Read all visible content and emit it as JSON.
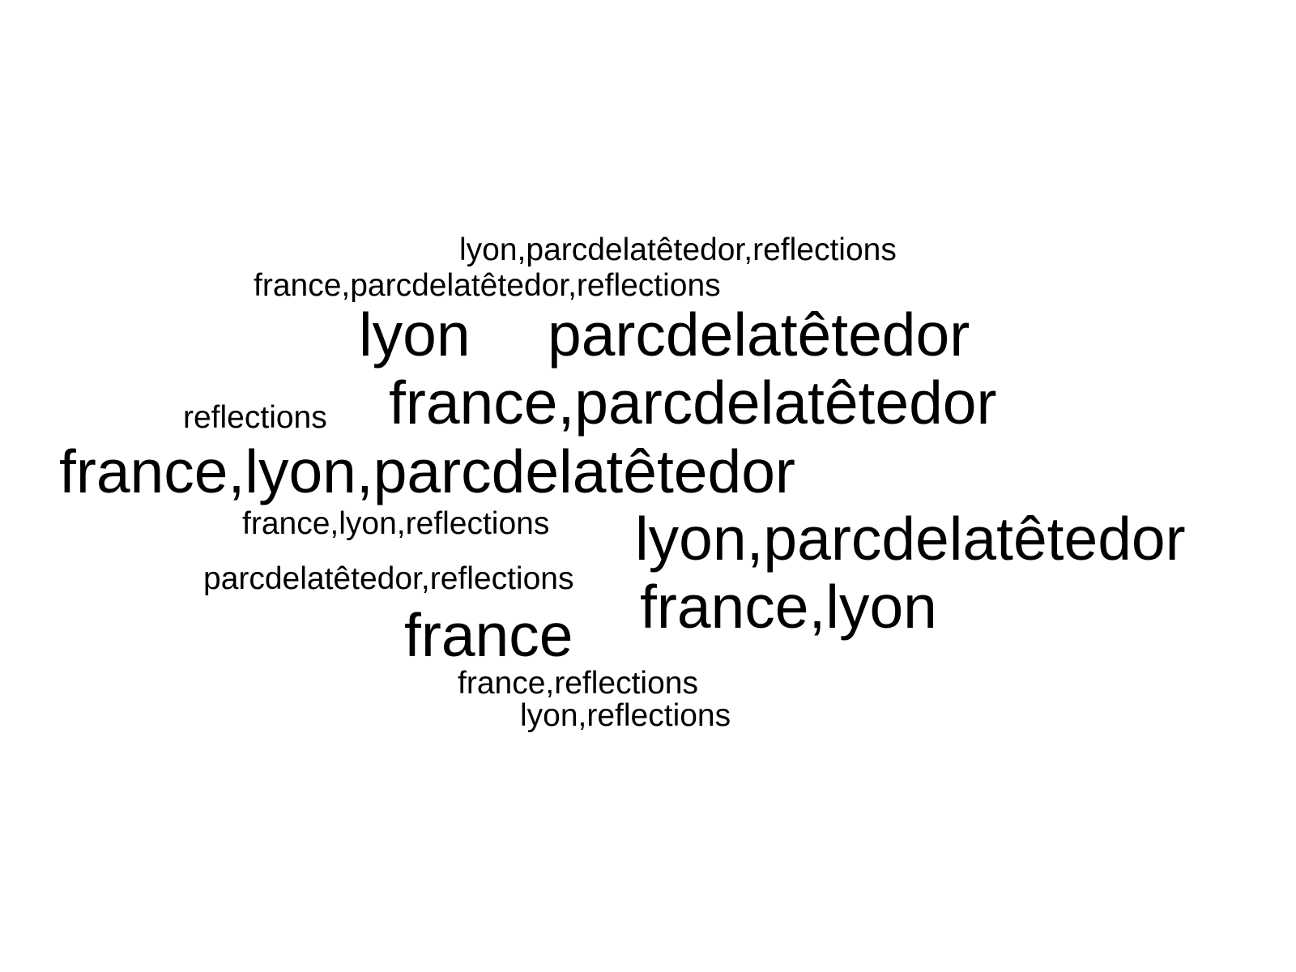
{
  "word_cloud": {
    "words": [
      {
        "text": "lyon,parcdelatêtedor,reflections",
        "weight": "small"
      },
      {
        "text": "france,parcdelatêtedor,reflections",
        "weight": "small"
      },
      {
        "text": "lyon",
        "weight": "large"
      },
      {
        "text": "parcdelatêtedor",
        "weight": "large"
      },
      {
        "text": "reflections",
        "weight": "small"
      },
      {
        "text": "france,parcdelatêtedor",
        "weight": "large"
      },
      {
        "text": "france,lyon,parcdelatêtedor",
        "weight": "large"
      },
      {
        "text": "france,lyon,reflections",
        "weight": "small"
      },
      {
        "text": "lyon,parcdelatêtedor",
        "weight": "large"
      },
      {
        "text": "parcdelatêtedor,reflections",
        "weight": "small"
      },
      {
        "text": "france,lyon",
        "weight": "large"
      },
      {
        "text": "france",
        "weight": "large"
      },
      {
        "text": "france,reflections",
        "weight": "small"
      },
      {
        "text": "lyon,reflections",
        "weight": "small"
      }
    ],
    "colors": {
      "text": "#000000",
      "background": "#ffffff"
    }
  }
}
